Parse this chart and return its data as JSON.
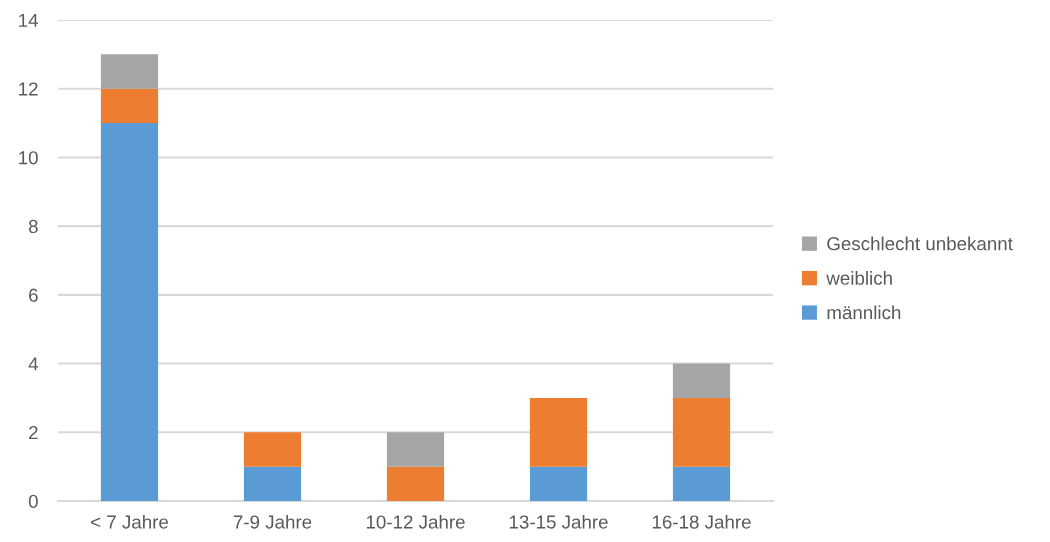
{
  "chart_data": {
    "type": "bar",
    "stacked": true,
    "categories": [
      "< 7 Jahre",
      "7-9 Jahre",
      "10-12 Jahre",
      "13-15 Jahre",
      "16-18 Jahre"
    ],
    "series": [
      {
        "name": "männlich",
        "color": "#5b9bd5",
        "values": [
          11,
          1,
          0,
          1,
          1
        ]
      },
      {
        "name": "weiblich",
        "color": "#ed7d31",
        "values": [
          1,
          1,
          1,
          2,
          2
        ]
      },
      {
        "name": "Geschlecht unbekannt",
        "color": "#a5a5a5",
        "values": [
          1,
          0,
          1,
          0,
          1
        ]
      }
    ],
    "ylim": [
      0,
      14
    ],
    "yticks": [
      0,
      2,
      4,
      6,
      8,
      10,
      12,
      14
    ],
    "grid": "y",
    "legend": "right"
  }
}
